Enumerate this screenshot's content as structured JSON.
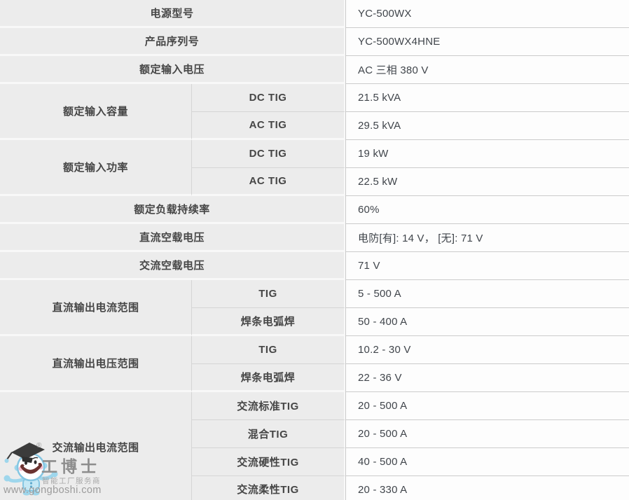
{
  "table": {
    "rows": [
      {
        "label": "电源型号",
        "value": "YC-500WX"
      },
      {
        "label": "产品序列号",
        "value": "YC-500WX4HNE"
      },
      {
        "label": "额定输入电压",
        "value": "AC 三相 380 V"
      },
      {
        "label": "额定输入容量",
        "subrows": [
          {
            "label": "DC TIG",
            "value": "21.5 kVA"
          },
          {
            "label": "AC TIG",
            "value": "29.5 kVA"
          }
        ]
      },
      {
        "label": "额定输入功率",
        "subrows": [
          {
            "label": "DC TIG",
            "value": "19 kW"
          },
          {
            "label": "AC TIG",
            "value": "22.5 kW"
          }
        ]
      },
      {
        "label": "额定负载持续率",
        "value": "60%"
      },
      {
        "label": "直流空载电压",
        "value": "电防[有]: 14 V， [无]: 71 V"
      },
      {
        "label": "交流空载电压",
        "value": "71 V"
      },
      {
        "label": "直流输出电流范围",
        "subrows": [
          {
            "label": "TIG",
            "value": "5 - 500 A"
          },
          {
            "label": "焊条电弧焊",
            "value": "50 - 400 A"
          }
        ]
      },
      {
        "label": "直流输出电压范围",
        "subrows": [
          {
            "label": "TIG",
            "value": "10.2 - 30 V"
          },
          {
            "label": "焊条电弧焊",
            "value": "22 - 36 V"
          }
        ]
      },
      {
        "label": "交流输出电流范围",
        "subrows": [
          {
            "label": "交流标准TIG",
            "value": "20 - 500 A"
          },
          {
            "label": "混合TIG",
            "value": "20 - 500 A"
          },
          {
            "label": "交流硬性TIG",
            "value": "40 - 500 A"
          },
          {
            "label": "交流柔性TIG",
            "value": "20 - 330 A"
          }
        ]
      }
    ]
  },
  "watermark": {
    "registered": "®",
    "brand": "工博士",
    "tagline": "智能工厂服务商",
    "url": "www.gongboshi.com"
  },
  "colors": {
    "label_bg": "#ececec",
    "cell_bg": "#fdfdfd",
    "line_gray": "#cbcbcb",
    "line_soft": "#d5d5d5",
    "line_light": "#f8f8f8",
    "label_text": "#464646",
    "value_text": "#40454b",
    "wm_dark": "#8d8d8d",
    "wm_mid": "#9b9b9b",
    "wm_light": "#a8a8a8",
    "mascot_dark": "#3b3b3b",
    "mascot_blue": "#9ed6ec",
    "mascot_blue_lt": "#c5e8f5",
    "mascot_outline": "#85c6e2",
    "mascot_cheek": "#f5b3c5"
  }
}
